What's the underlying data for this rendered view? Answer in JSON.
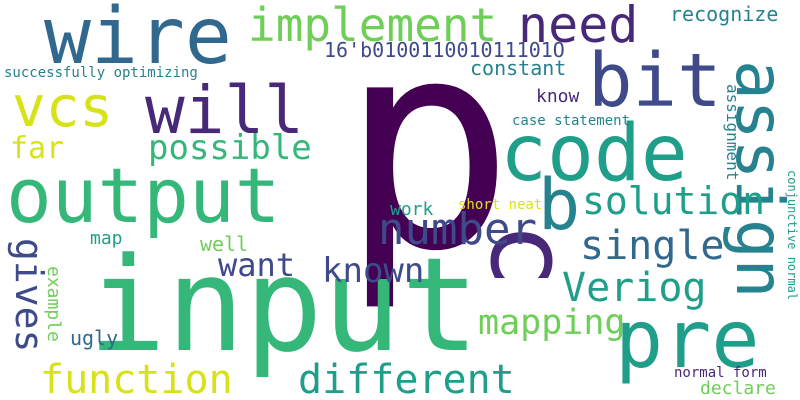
{
  "cloud": {
    "colors": {
      "dark_purple": "#440154",
      "indigo": "#482878",
      "slate_blue": "#3e4a89",
      "steel_blue": "#31688e",
      "teal": "#26828e",
      "sea_green": "#1f9e89",
      "green": "#35b779",
      "light_green": "#6ece58",
      "lime": "#b5de2b",
      "yellow": "#d8e219"
    },
    "words": [
      {
        "text": "p",
        "color": "dark_purple"
      },
      {
        "text": "input",
        "color": "green"
      },
      {
        "text": "output",
        "color": "green"
      },
      {
        "text": "wire",
        "color": "steel_blue"
      },
      {
        "text": "code",
        "color": "sea_green"
      },
      {
        "text": "bit",
        "color": "slate_blue"
      },
      {
        "text": "will",
        "color": "indigo"
      },
      {
        "text": "vcs",
        "color": "yellow"
      },
      {
        "text": "implement",
        "color": "light_green"
      },
      {
        "text": "need",
        "color": "indigo"
      },
      {
        "text": "assign",
        "color": "teal"
      },
      {
        "text": "pre",
        "color": "sea_green"
      },
      {
        "text": "c",
        "color": "indigo"
      },
      {
        "text": "b",
        "color": "teal"
      },
      {
        "text": "number",
        "color": "slate_blue"
      },
      {
        "text": "solution",
        "color": "sea_green"
      },
      {
        "text": "single",
        "color": "steel_blue"
      },
      {
        "text": "Veriog",
        "color": "sea_green"
      },
      {
        "text": "function",
        "color": "yellow"
      },
      {
        "text": "different",
        "color": "sea_green"
      },
      {
        "text": "mapping",
        "color": "light_green"
      },
      {
        "text": "known",
        "color": "slate_blue"
      },
      {
        "text": "want",
        "color": "slate_blue"
      },
      {
        "text": "possible",
        "color": "green"
      },
      {
        "text": "far",
        "color": "yellow"
      },
      {
        "text": "gives",
        "color": "slate_blue"
      },
      {
        "text": "16'b010011001011101O",
        "color": "slate_blue"
      },
      {
        "text": "constant",
        "color": "teal"
      },
      {
        "text": "recognize",
        "color": "teal"
      },
      {
        "text": "successfully optimizing",
        "color": "teal"
      },
      {
        "text": "know",
        "color": "indigo"
      },
      {
        "text": "case statement",
        "color": "teal"
      },
      {
        "text": "assignment",
        "color": "teal"
      },
      {
        "text": "conjunctive normal",
        "color": "sea_green"
      },
      {
        "text": "work",
        "color": "sea_green"
      },
      {
        "text": "short neat",
        "color": "yellow"
      },
      {
        "text": "map",
        "color": "sea_green"
      },
      {
        "text": "well",
        "color": "light_green"
      },
      {
        "text": "example",
        "color": "light_green"
      },
      {
        "text": "ugly",
        "color": "steel_blue"
      },
      {
        "text": "normal form",
        "color": "indigo"
      },
      {
        "text": "declare",
        "color": "light_green"
      }
    ]
  }
}
